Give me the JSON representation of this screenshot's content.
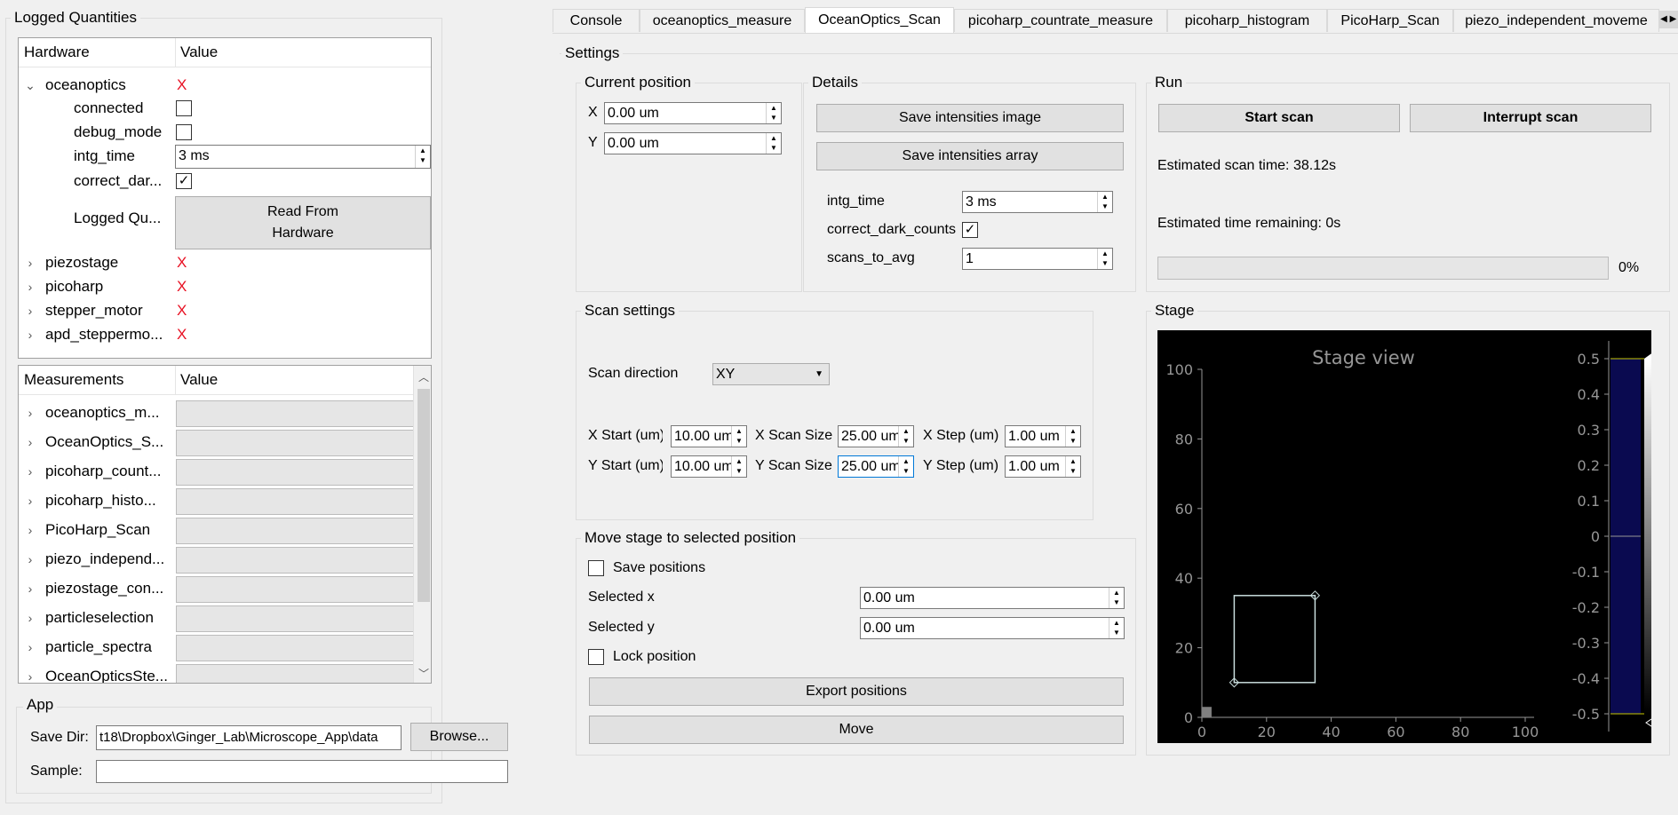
{
  "logged_quantities": {
    "title": "Logged Quantities",
    "col_hardware": "Hardware",
    "col_value": "Value",
    "oceanoptics": {
      "name": "oceanoptics",
      "status": "X",
      "connected_label": "connected",
      "debug_mode_label": "debug_mode",
      "intg_time_label": "intg_time",
      "intg_time_value": "3 ms",
      "correct_dark_label": "correct_dar...",
      "logged_qu_label": "Logged Qu...",
      "read_button_line1": "Read From",
      "read_button_line2": "Hardware"
    },
    "other_hardware": [
      {
        "name": "piezostage",
        "status": "X"
      },
      {
        "name": "picoharp",
        "status": "X"
      },
      {
        "name": "stepper_motor",
        "status": "X"
      },
      {
        "name": "apd_steppermo...",
        "status": "X"
      }
    ]
  },
  "measurements": {
    "col_name": "Measurements",
    "col_value": "Value",
    "items": [
      {
        "name": "oceanoptics_m...",
        "percent": "0%"
      },
      {
        "name": "OceanOptics_S...",
        "percent": "0%"
      },
      {
        "name": "picoharp_count...",
        "percent": "0%"
      },
      {
        "name": "picoharp_histo...",
        "percent": "0%"
      },
      {
        "name": "PicoHarp_Scan",
        "percent": "0%"
      },
      {
        "name": "piezo_independ...",
        "percent": "0%"
      },
      {
        "name": "piezostage_con...",
        "percent": "0%"
      },
      {
        "name": "particleselection",
        "percent": "0%"
      },
      {
        "name": "particle_spectra",
        "percent": "0%"
      },
      {
        "name": "OceanOpticsSte...",
        "percent": "0%"
      }
    ]
  },
  "app": {
    "title": "App",
    "save_dir_label": "Save Dir:",
    "save_dir_value": "t18\\Dropbox\\Ginger_Lab\\Microscope_App\\data",
    "browse_label": "Browse...",
    "sample_label": "Sample:",
    "sample_value": ""
  },
  "tabs": [
    {
      "label": "Console"
    },
    {
      "label": "oceanoptics_measure"
    },
    {
      "label": "OceanOptics_Scan"
    },
    {
      "label": "picoharp_countrate_measure"
    },
    {
      "label": "picoharp_histogram"
    },
    {
      "label": "PicoHarp_Scan"
    },
    {
      "label": "piezo_independent_moveme"
    }
  ],
  "settings": {
    "title": "Settings",
    "current_position": {
      "title": "Current position",
      "x_label": "X",
      "x_value": "0.00 um",
      "y_label": "Y",
      "y_value": "0.00 um"
    },
    "details": {
      "title": "Details",
      "save_image_label": "Save intensities image",
      "save_array_label": "Save intensities array",
      "intg_time_label": "intg_time",
      "intg_time_value": "3 ms",
      "correct_dark_label": "correct_dark_counts",
      "scans_to_avg_label": "scans_to_avg",
      "scans_to_avg_value": "1"
    },
    "run": {
      "title": "Run",
      "start_label": "Start scan",
      "interrupt_label": "Interrupt scan",
      "est_scan_time": "Estimated scan time: 38.12s",
      "est_remaining": "Estimated time remaining: 0s",
      "progress": "0%",
      "progress_fraction": 0
    },
    "scan_settings": {
      "title": "Scan settings",
      "direction_label": "Scan direction",
      "direction_value": "XY",
      "x_start_label": "X Start (um)",
      "x_start_value": "10.00 um",
      "x_size_label": "X Scan Size",
      "x_size_value": "25.00 um",
      "x_step_label": "X Step (um)",
      "x_step_value": "1.00 um",
      "y_start_label": "Y Start (um)",
      "y_start_value": "10.00 um",
      "y_size_label": "Y Scan Size",
      "y_size_value": "25.00 um",
      "y_step_label": "Y Step (um)",
      "y_step_value": "1.00 um"
    },
    "move_stage": {
      "title": "Move stage to selected position",
      "save_positions_label": "Save positions",
      "selected_x_label": "Selected x",
      "selected_x_value": "0.00 um",
      "selected_y_label": "Selected y",
      "selected_y_value": "0.00 um",
      "lock_label": "Lock position",
      "export_label": "Export positions",
      "move_label": "Move"
    },
    "stage": {
      "title": "Stage",
      "plot_title": "Stage view",
      "x_ticks": [
        "0",
        "20",
        "40",
        "60",
        "80",
        "100"
      ],
      "y_ticks": [
        "0",
        "20",
        "40",
        "60",
        "80",
        "100"
      ],
      "colorbar_ticks": [
        "0.5",
        "0.4",
        "0.3",
        "0.2",
        "0.1",
        "0",
        "-0.1",
        "-0.2",
        "-0.3",
        "-0.4",
        "-0.5"
      ],
      "roi": {
        "x0": 10,
        "y0": 10,
        "x1": 35,
        "y1": 35
      },
      "colors": {
        "background": "#000000",
        "roi": "#c8dcdc",
        "axis": "#969696",
        "colorbar": "#0a0a50"
      }
    }
  }
}
